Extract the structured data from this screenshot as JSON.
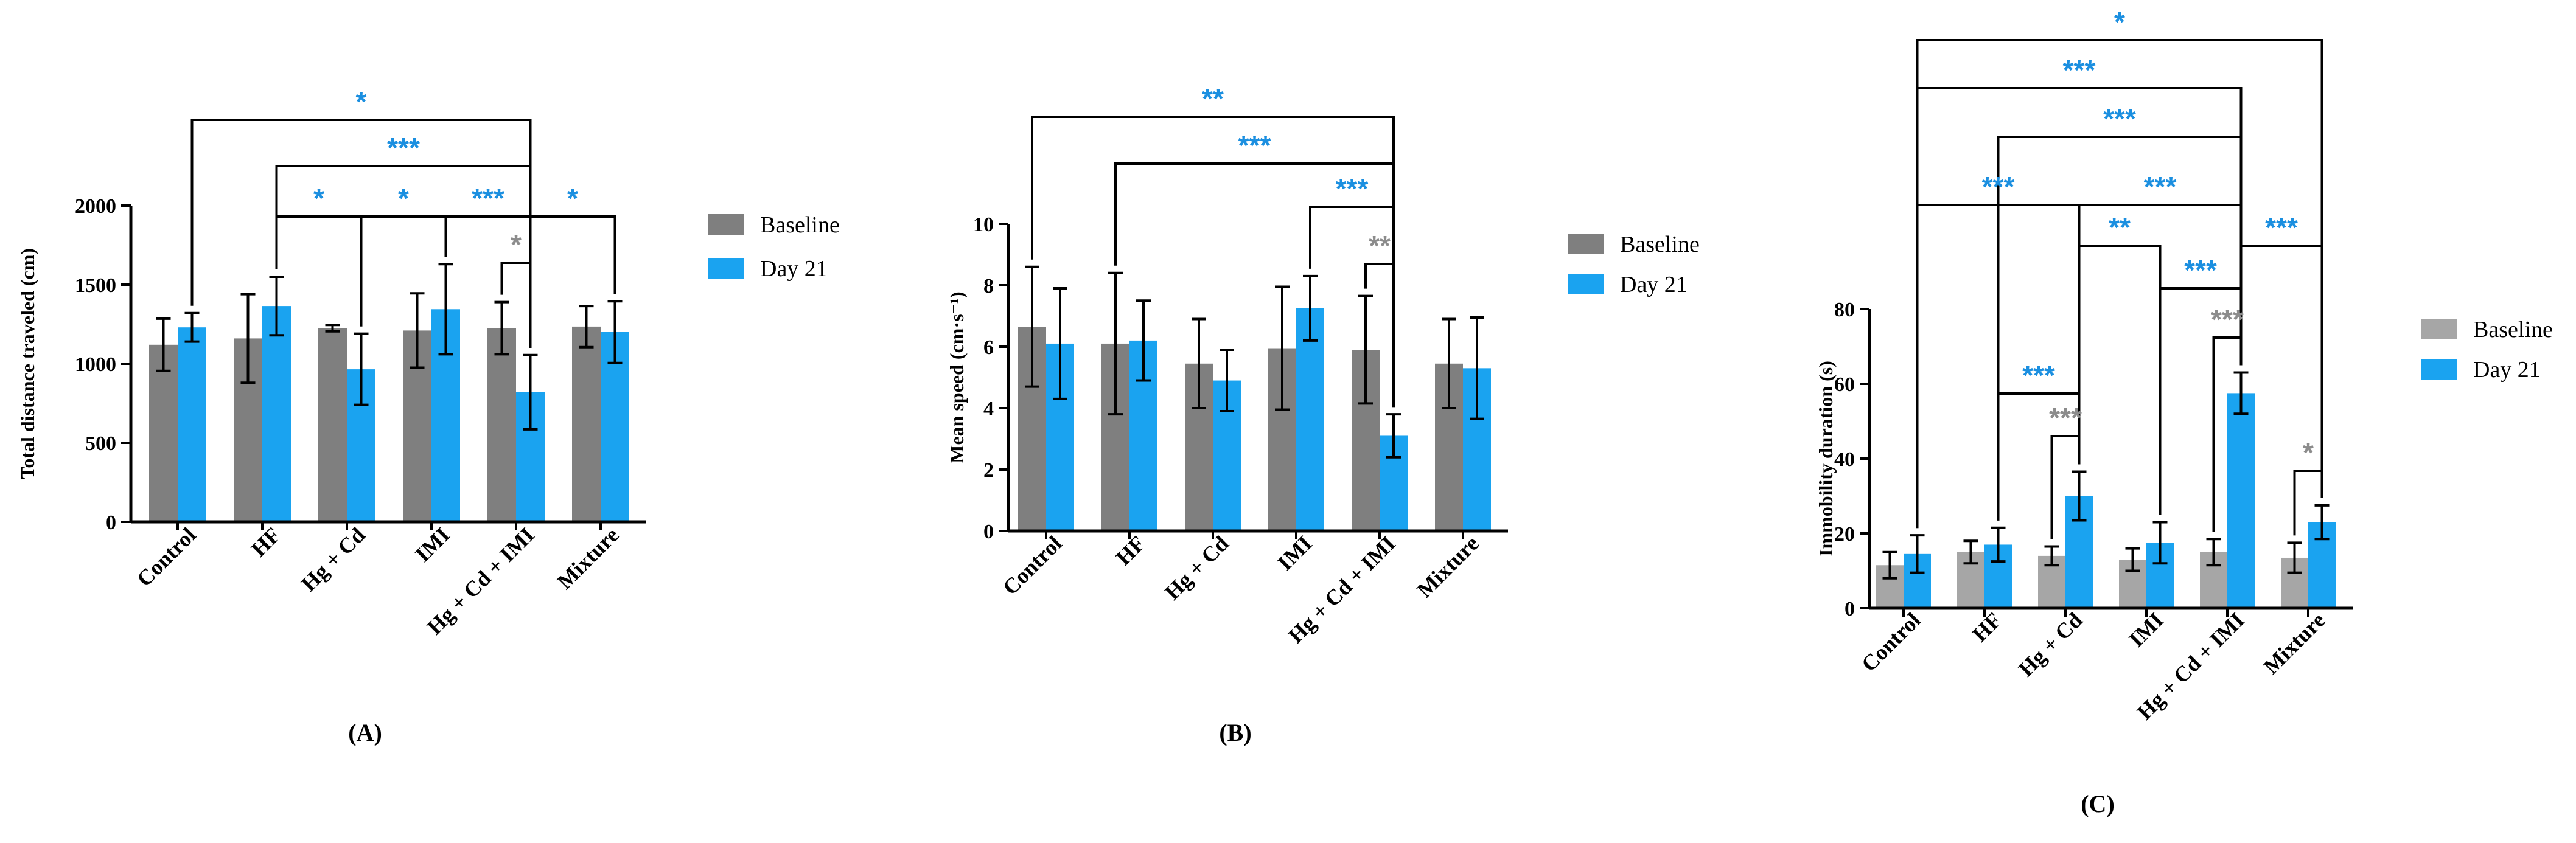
{
  "colors": {
    "baseline_A": "#7f7f7f",
    "baseline_B": "#7f7f7f",
    "baseline_C": "#a6a6a6",
    "day21": "#1aa3f0",
    "sig_blue": "#1b8fe0",
    "sig_gray": "#8c8c8c",
    "axis": "#000000"
  },
  "chart_data": [
    {
      "id": "A",
      "type": "bar",
      "panel_label": "(A)",
      "title": "",
      "xlabel": "",
      "ylabel": "Total distance traveled (cm)",
      "ylim": [
        0,
        2000
      ],
      "yticks": [
        0,
        500,
        1000,
        1500,
        2000
      ],
      "grid": false,
      "legend_position": "right",
      "categories": [
        "Control",
        "HF",
        "Hg + Cd",
        "IMI",
        "Hg + Cd + IMI",
        "Mixture"
      ],
      "series": [
        {
          "name": "Baseline",
          "values": [
            1120,
            1160,
            1225,
            1210,
            1225,
            1235
          ],
          "errors": [
            165,
            280,
            20,
            235,
            165,
            130
          ]
        },
        {
          "name": "Day 21",
          "values": [
            1230,
            1365,
            965,
            1345,
            820,
            1200
          ],
          "errors": [
            90,
            185,
            225,
            285,
            235,
            195
          ]
        }
      ],
      "significance": [
        {
          "label": "*",
          "color": "blue",
          "from": [
            0,
            1
          ],
          "to": [
            4,
            1
          ]
        },
        {
          "label": "***",
          "color": "blue",
          "from": [
            1,
            1
          ],
          "to": [
            4,
            1
          ]
        },
        {
          "label": "*",
          "color": "blue",
          "from": [
            1,
            1
          ],
          "to": [
            2,
            1
          ]
        },
        {
          "label": "*",
          "color": "blue",
          "from": [
            2,
            1
          ],
          "to": [
            3,
            1
          ]
        },
        {
          "label": "***",
          "color": "blue",
          "from": [
            3,
            1
          ],
          "to": [
            4,
            1
          ]
        },
        {
          "label": "*",
          "color": "blue",
          "from": [
            4,
            1
          ],
          "to": [
            5,
            1
          ]
        },
        {
          "label": "*",
          "color": "gray",
          "from": [
            4,
            0
          ],
          "to": [
            4,
            1
          ]
        }
      ]
    },
    {
      "id": "B",
      "type": "bar",
      "panel_label": "(B)",
      "title": "",
      "xlabel": "",
      "ylabel": "Mean speed (cm·s⁻¹)",
      "ylim": [
        0,
        10
      ],
      "yticks": [
        0,
        2,
        4,
        6,
        8,
        10
      ],
      "grid": false,
      "legend_position": "right",
      "categories": [
        "Control",
        "HF",
        "Hg + Cd",
        "IMI",
        "Hg + Cd + IMI",
        "Mixture"
      ],
      "series": [
        {
          "name": "Baseline",
          "values": [
            6.65,
            6.1,
            5.45,
            5.95,
            5.9,
            5.45
          ],
          "errors": [
            1.95,
            2.3,
            1.45,
            2.0,
            1.75,
            1.45
          ]
        },
        {
          "name": "Day 21",
          "values": [
            6.1,
            6.2,
            4.9,
            7.25,
            3.1,
            5.3
          ],
          "errors": [
            1.8,
            1.3,
            1.0,
            1.05,
            0.7,
            1.65
          ]
        }
      ],
      "significance": [
        {
          "label": "**",
          "color": "blue",
          "from": [
            0,
            0
          ],
          "to": [
            4,
            1
          ]
        },
        {
          "label": "***",
          "color": "blue",
          "from": [
            1,
            0
          ],
          "to": [
            4,
            1
          ]
        },
        {
          "label": "***",
          "color": "blue",
          "from": [
            3,
            1
          ],
          "to": [
            4,
            1
          ]
        },
        {
          "label": "**",
          "color": "gray",
          "from": [
            4,
            0
          ],
          "to": [
            4,
            1
          ]
        }
      ]
    },
    {
      "id": "C",
      "type": "bar",
      "panel_label": "(C)",
      "title": "",
      "xlabel": "",
      "ylabel": "Immobility duration (s)",
      "ylim": [
        0,
        80
      ],
      "yticks": [
        0,
        20,
        40,
        60,
        80
      ],
      "grid": false,
      "legend_position": "right",
      "categories": [
        "Control",
        "HF",
        "Hg + Cd",
        "IMI",
        "Hg + Cd + IMI",
        "Mixture"
      ],
      "series": [
        {
          "name": "Baseline",
          "values": [
            11.5,
            15,
            14,
            13,
            15,
            13.5
          ],
          "errors": [
            3.5,
            3,
            2.5,
            3,
            3.5,
            4
          ]
        },
        {
          "name": "Day 21",
          "values": [
            14.5,
            17,
            30,
            17.5,
            57.5,
            23
          ],
          "errors": [
            5,
            4.5,
            6.5,
            5.5,
            5.5,
            4.5
          ]
        }
      ],
      "significance": [
        {
          "label": "*",
          "color": "blue",
          "from": [
            0,
            1
          ],
          "to": [
            5,
            1
          ]
        },
        {
          "label": "***",
          "color": "blue",
          "from": [
            0,
            1
          ],
          "to": [
            4,
            1
          ]
        },
        {
          "label": "***",
          "color": "blue",
          "from": [
            1,
            1
          ],
          "to": [
            4,
            1
          ]
        },
        {
          "label": "***",
          "color": "blue",
          "from": [
            0,
            1
          ],
          "to": [
            2,
            1
          ]
        },
        {
          "label": "***",
          "color": "blue",
          "from": [
            2,
            1
          ],
          "to": [
            4,
            1
          ]
        },
        {
          "label": "**",
          "color": "blue",
          "from": [
            2,
            1
          ],
          "to": [
            3,
            1
          ]
        },
        {
          "label": "***",
          "color": "blue",
          "from": [
            4,
            1
          ],
          "to": [
            5,
            1
          ]
        },
        {
          "label": "***",
          "color": "blue",
          "from": [
            3,
            1
          ],
          "to": [
            4,
            1
          ]
        },
        {
          "label": "***",
          "color": "blue",
          "from": [
            1,
            1
          ],
          "to": [
            2,
            1
          ]
        },
        {
          "label": "***",
          "color": "gray",
          "from": [
            2,
            0
          ],
          "to": [
            2,
            1
          ]
        },
        {
          "label": "***",
          "color": "gray",
          "from": [
            4,
            0
          ],
          "to": [
            4,
            1
          ]
        },
        {
          "label": "*",
          "color": "gray",
          "from": [
            5,
            0
          ],
          "to": [
            5,
            1
          ]
        }
      ]
    }
  ]
}
